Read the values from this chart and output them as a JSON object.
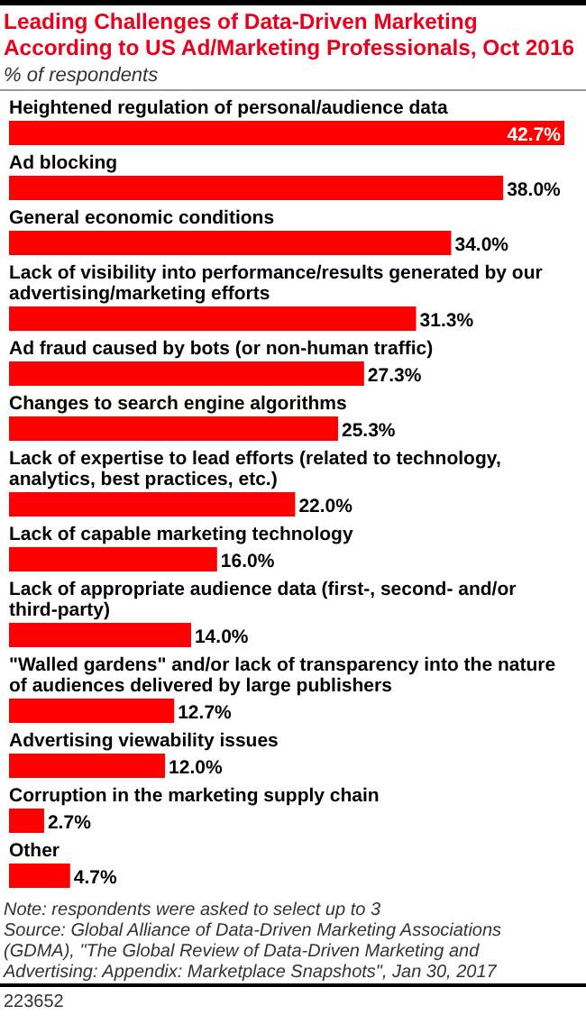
{
  "chart_data": {
    "type": "bar",
    "orientation": "horizontal",
    "title": "Leading Challenges of Data-Driven Marketing According to US Ad/Marketing Professionals, Oct 2016",
    "subtitle": "% of respondents",
    "categories": [
      "Heightened regulation of personal/audience data",
      "Ad blocking",
      "General economic conditions",
      "Lack of visibility into performance/results generated by our advertising/marketing efforts",
      "Ad fraud caused by bots (or non-human traffic)",
      "Changes to search engine algorithms",
      "Lack of expertise to lead efforts (related to technology, analytics, best practices, etc.)",
      "Lack of capable marketing technology",
      "Lack of appropriate audience data (first-, second- and/or third-party)",
      "\"Walled gardens\" and/or lack of transparency into the nature of audiences delivered by large publishers",
      "Advertising viewability issues",
      "Corruption in the marketing supply chain",
      "Other"
    ],
    "values": [
      42.7,
      38.0,
      34.0,
      31.3,
      27.3,
      25.3,
      22.0,
      16.0,
      14.0,
      12.7,
      12.0,
      2.7,
      4.7
    ],
    "value_labels": [
      "42.7%",
      "38.0%",
      "34.0%",
      "31.3%",
      "27.3%",
      "25.3%",
      "22.0%",
      "16.0%",
      "14.0%",
      "12.7%",
      "12.0%",
      "2.7%",
      "4.7%"
    ],
    "color": "#ff0000",
    "annotations": [
      "Note: respondents were asked to select up to 3",
      "Source: Global Alliance of Data-Driven Marketing Associations (GDMA), \"The Global Review of Data-Driven Marketing and Advertising: Appendix: Marketplace Snapshots\", Jan 30, 2017",
      "223652"
    ]
  }
}
